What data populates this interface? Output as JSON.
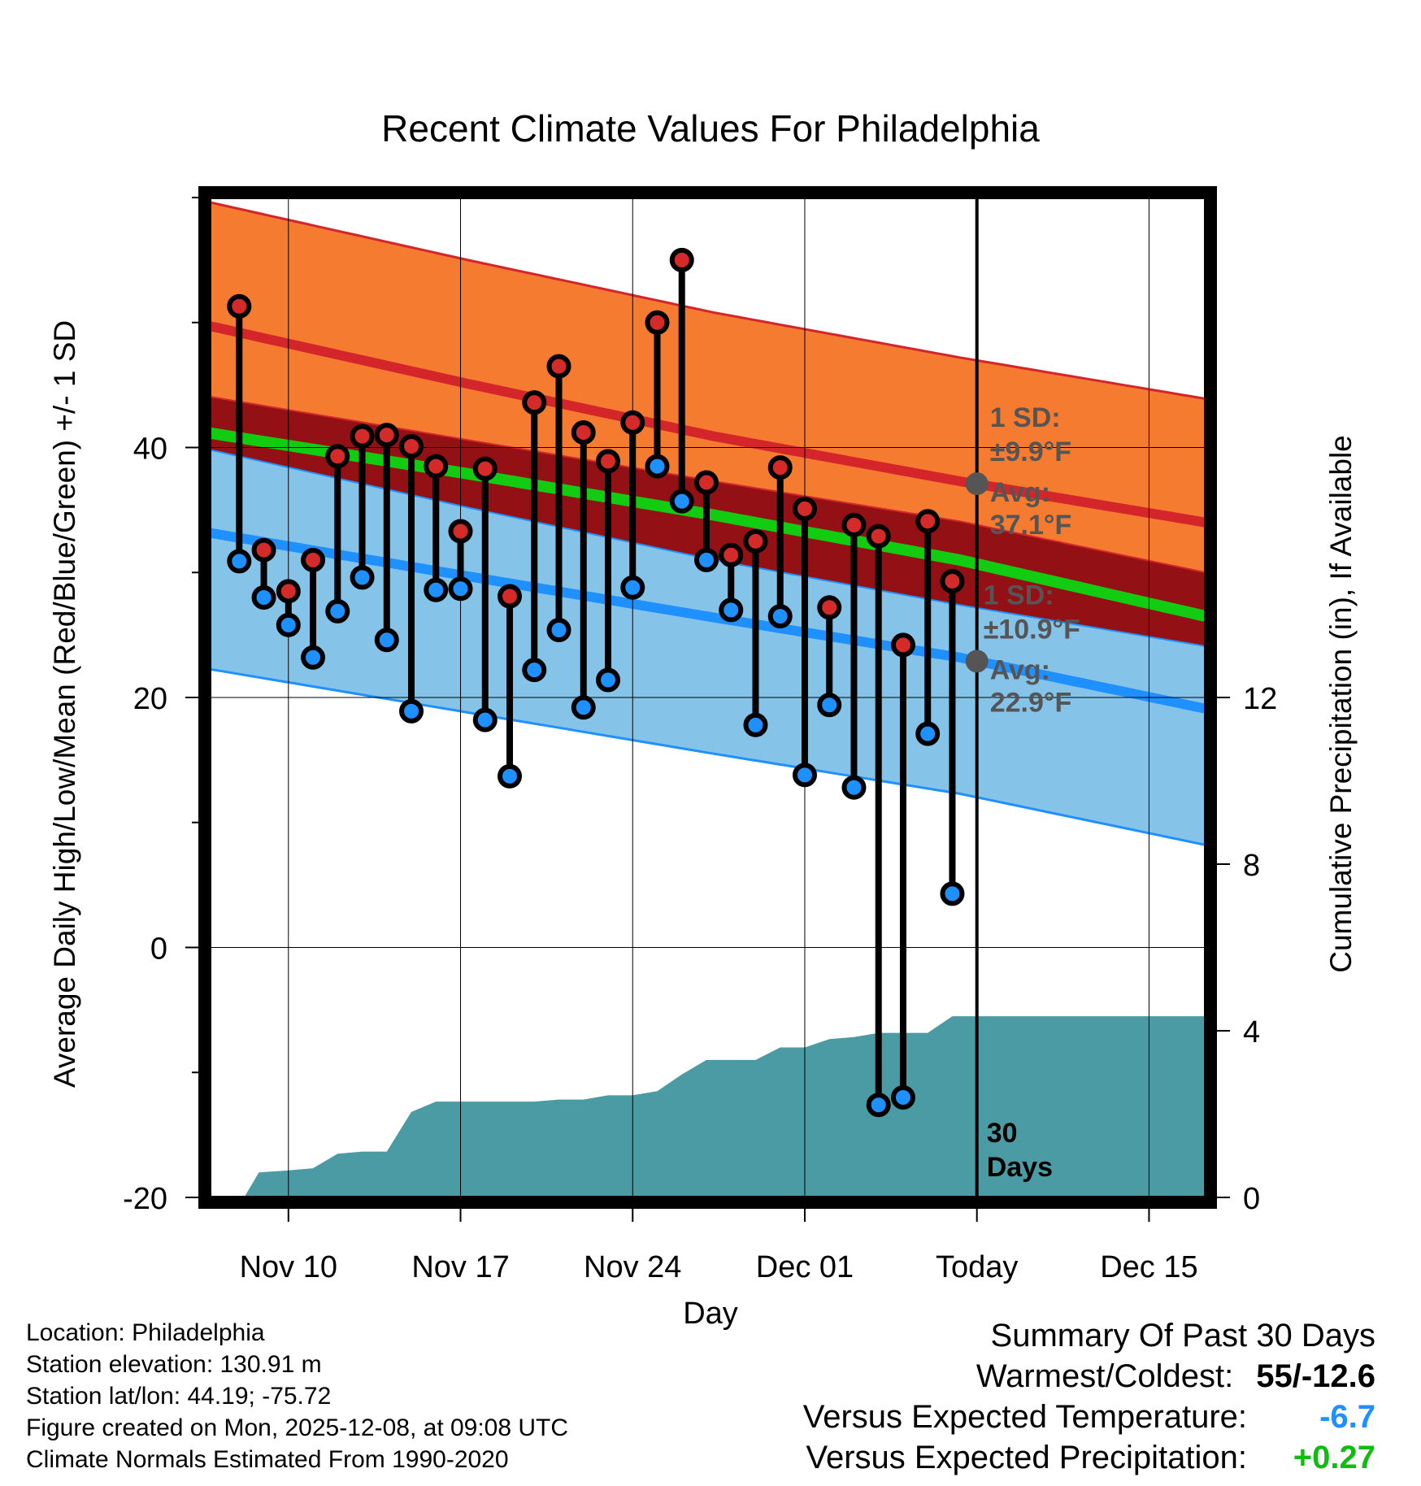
{
  "chart_data": {
    "type": "line",
    "title": "Recent Climate Values For Philadelphia",
    "xlabel": "Day",
    "ylabel": "Average Daily High/Low/Mean (Red/Blue/Green) +/- 1 SD",
    "y2label": "Cumulative Precipitation (in), If Available",
    "x_ticks": [
      "Nov 10",
      "Nov 17",
      "Nov 24",
      "Dec 01",
      "Today",
      "Dec 15"
    ],
    "x_tick_days": [
      10,
      17,
      24,
      31,
      38,
      45
    ],
    "xlim": [
      6.8,
      47.3
    ],
    "ylim": [
      -20,
      60
    ],
    "y_ticks": [
      -20,
      0,
      20,
      40
    ],
    "y2lim": [
      0,
      24
    ],
    "y2_ticks": [
      0,
      4,
      8,
      12
    ],
    "today_day": 38,
    "normals": {
      "day": [
        7.3,
        17.3,
        27.3,
        37.3,
        47.3
      ],
      "high_avg": [
        49.5,
        45.1,
        40.9,
        37.3,
        34.0
      ],
      "high_sd": 9.9,
      "low_avg": [
        33.0,
        29.7,
        26.4,
        23.2,
        19.1
      ],
      "low_sd": 10.9,
      "mean_avg": [
        41.0,
        37.9,
        34.6,
        31.0,
        26.5
      ]
    },
    "daily": {
      "day": [
        8,
        9,
        10,
        11,
        12,
        13,
        14,
        15,
        16,
        17,
        18,
        19,
        20,
        21,
        22,
        23,
        24,
        25,
        26,
        27,
        28,
        29,
        30,
        31,
        32,
        33,
        34,
        35,
        36,
        37
      ],
      "high": [
        51.3,
        31.8,
        28.5,
        31.0,
        39.3,
        40.9,
        41.0,
        40.1,
        38.5,
        33.3,
        38.3,
        28.1,
        43.6,
        46.5,
        41.2,
        38.9,
        42.0,
        50.0,
        55.0,
        37.2,
        31.4,
        32.5,
        38.4,
        35.1,
        27.2,
        33.8,
        32.9,
        24.2,
        34.1,
        29.3
      ],
      "low": [
        30.9,
        28.0,
        25.8,
        23.2,
        26.9,
        29.6,
        24.6,
        18.9,
        28.6,
        28.7,
        18.2,
        13.7,
        22.2,
        25.4,
        19.2,
        21.4,
        28.8,
        38.5,
        35.7,
        31.0,
        27.0,
        17.8,
        26.5,
        13.8,
        19.4,
        12.8,
        -12.6,
        -12.0,
        17.1,
        4.3
      ]
    },
    "precip_cumulative": {
      "day": [
        6.8,
        8.2,
        8.8,
        10.0,
        11.0,
        12.0,
        13.0,
        14.0,
        15.0,
        16.0,
        17.0,
        18.0,
        19.0,
        20.0,
        21.0,
        22.0,
        23.0,
        24.0,
        25.0,
        26.0,
        27.0,
        28.0,
        29.0,
        30.0,
        31.0,
        32.0,
        33.0,
        34.0,
        35.0,
        36.0,
        37.0,
        38.0,
        47.3
      ],
      "inches": [
        0,
        0,
        0.6,
        0.65,
        0.7,
        1.05,
        1.1,
        1.1,
        2.05,
        2.3,
        2.3,
        2.3,
        2.3,
        2.3,
        2.35,
        2.35,
        2.45,
        2.45,
        2.55,
        2.95,
        3.3,
        3.3,
        3.3,
        3.6,
        3.6,
        3.8,
        3.85,
        3.95,
        3.95,
        3.95,
        4.35,
        4.35,
        4.35
      ]
    },
    "annotations": {
      "high_sd_label": "1 SD:",
      "high_sd_value": "±9.9°F",
      "high_avg_label": "Avg:",
      "high_avg_value": "37.1°F",
      "high_avg_point": 37.1,
      "low_sd_label": "1 SD:",
      "low_sd_value": "±10.9°F",
      "low_avg_label": "Avg:",
      "low_avg_value": "22.9°F",
      "low_avg_point": 22.9,
      "days_line1": "30",
      "days_line2": "Days"
    },
    "colors": {
      "high_band": "#f47b30",
      "high_line": "#d4262a",
      "mean_band": "#931014",
      "mean_line": "#11cc11",
      "low_band": "#86c3e8",
      "low_line": "#1e90ff",
      "precip": "#4a9ba3",
      "high_marker": "#d42a2a",
      "low_marker": "#1e90ff",
      "annotation": "#555555"
    }
  },
  "footer": {
    "location": "Location: Philadelphia",
    "elevation": "Station elevation: 130.91 m",
    "latlon": "Station lat/lon: 44.19; -75.72",
    "created": "Figure created on Mon, 2025-12-08, at 09:08 UTC",
    "normals": "Climate Normals Estimated From 1990-2020"
  },
  "summary": {
    "title": "Summary Of Past 30 Days",
    "warm_cold_label": "Warmest/Coldest:",
    "warm_cold_value": "55/-12.6",
    "temp_label": "Versus Expected Temperature:",
    "temp_value": "-6.7",
    "temp_color": "#1e90ff",
    "precip_label": "Versus Expected Precipitation:",
    "precip_value": "+0.27",
    "precip_color": "#11bb11"
  }
}
